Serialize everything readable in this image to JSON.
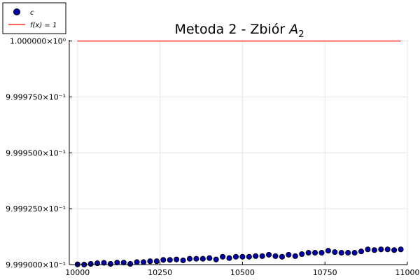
{
  "chart_data": {
    "type": "scatter",
    "title_main": "Metoda 2 - Zbiór ",
    "title_symbol": "A",
    "title_subscript": "2",
    "xlabel": "",
    "ylabel": "",
    "xlim": [
      9975,
      11000
    ],
    "ylim": [
      0.9999,
      1.0000005
    ],
    "x_ticks": [
      10000,
      10250,
      10500,
      10750,
      11000
    ],
    "x_tick_labels": [
      "10000",
      "10250",
      "10500",
      "10750",
      "11000"
    ],
    "y_ticks": [
      0.9999,
      0.999925,
      0.99995,
      0.999975,
      1.0
    ],
    "y_tick_labels": [
      "9.999000×10⁻¹",
      "9.999250×10⁻¹",
      "9.999500×10⁻¹",
      "9.999750×10⁻¹",
      "1.000000×10⁰"
    ],
    "grid": true,
    "legend_position": "top-left",
    "series": [
      {
        "name": "c",
        "kind": "scatter",
        "color": "#0000aa",
        "points": [
          [
            10000,
            0.99990011
          ],
          [
            10020,
            0.99990001
          ],
          [
            10040,
            0.99990031
          ],
          [
            10060,
            0.9999006
          ],
          [
            10080,
            0.9999008
          ],
          [
            10100,
            0.99990031
          ],
          [
            10120,
            0.9999009
          ],
          [
            10140,
            0.9999009
          ],
          [
            10160,
            0.99990031
          ],
          [
            10180,
            0.9999011
          ],
          [
            10200,
            0.9999011
          ],
          [
            10220,
            0.9999015
          ],
          [
            10240,
            0.9999015
          ],
          [
            10260,
            0.9999021
          ],
          [
            10280,
            0.9999021
          ],
          [
            10300,
            0.9999023
          ],
          [
            10320,
            0.9999019
          ],
          [
            10340,
            0.9999026
          ],
          [
            10360,
            0.9999026
          ],
          [
            10380,
            0.9999026
          ],
          [
            10400,
            0.9999029
          ],
          [
            10420,
            0.9999023
          ],
          [
            10440,
            0.9999035
          ],
          [
            10460,
            0.9999029
          ],
          [
            10480,
            0.9999035
          ],
          [
            10500,
            0.9999035
          ],
          [
            10520,
            0.9999035
          ],
          [
            10540,
            0.9999038
          ],
          [
            10560,
            0.9999038
          ],
          [
            10580,
            0.9999044
          ],
          [
            10600,
            0.9999038
          ],
          [
            10620,
            0.9999035
          ],
          [
            10640,
            0.9999044
          ],
          [
            10660,
            0.9999038
          ],
          [
            10680,
            0.9999047
          ],
          [
            10700,
            0.9999053
          ],
          [
            10720,
            0.9999053
          ],
          [
            10740,
            0.9999053
          ],
          [
            10760,
            0.9999062
          ],
          [
            10780,
            0.9999056
          ],
          [
            10800,
            0.9999053
          ],
          [
            10820,
            0.9999053
          ],
          [
            10840,
            0.9999053
          ],
          [
            10860,
            0.9999059
          ],
          [
            10880,
            0.9999068
          ],
          [
            10900,
            0.9999065
          ],
          [
            10920,
            0.9999068
          ],
          [
            10940,
            0.9999068
          ],
          [
            10960,
            0.9999065
          ],
          [
            10980,
            0.9999068
          ]
        ]
      },
      {
        "name": "f(x) = 1",
        "kind": "line",
        "color": "#ff0000",
        "x": [
          10000,
          10980
        ],
        "y": [
          1.0,
          1.0
        ]
      }
    ]
  },
  "legend": {
    "entry1_label": "c",
    "entry2_label": "f(x) = 1"
  }
}
